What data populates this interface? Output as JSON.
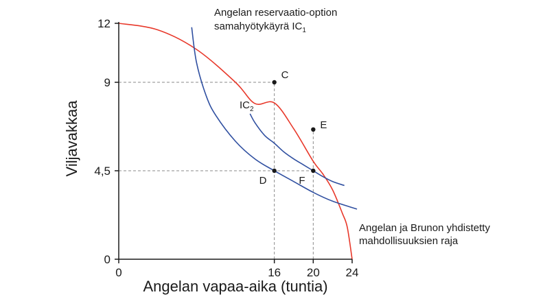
{
  "chart_data": {
    "type": "line",
    "title": "",
    "xlabel": "Angelan vapaa-aika (tuntia)",
    "ylabel": "Viljavakkaa",
    "xlim": [
      0,
      24
    ],
    "ylim": [
      0,
      12
    ],
    "xticks": [
      {
        "value": 0,
        "label": "0"
      },
      {
        "value": 16,
        "label": "16"
      },
      {
        "value": 20,
        "label": "20"
      },
      {
        "value": 24,
        "label": "24"
      }
    ],
    "yticks": [
      {
        "value": 0,
        "label": "0"
      },
      {
        "value": 4.5,
        "label": "4,5"
      },
      {
        "value": 9,
        "label": "9"
      },
      {
        "value": 12,
        "label": "12"
      }
    ],
    "grid": false,
    "series": [
      {
        "name": "Angelan ja Brunon yhdistetty mahdollisuuksien raja",
        "color": "#e8382a",
        "x": [
          0,
          4,
          8,
          12,
          14,
          16,
          18,
          20,
          21,
          22,
          23,
          23.5,
          24
        ],
        "y": [
          12,
          11.67,
          10.67,
          9,
          7.92,
          7.95,
          6.63,
          4.98,
          4.33,
          3.52,
          2.33,
          1.63,
          0
        ]
      },
      {
        "name": "IC1",
        "color": "#2f4fa0",
        "x": [
          7.5,
          8,
          9,
          10,
          12,
          14,
          16,
          18,
          20,
          22,
          24.5
        ],
        "y": [
          11.8,
          10.0,
          8.3,
          7.3,
          6.0,
          5.1,
          4.5,
          3.95,
          3.4,
          2.95,
          2.55
        ]
      },
      {
        "name": "IC2",
        "color": "#2f4fa0",
        "x": [
          13.5,
          14,
          15,
          16,
          17,
          18,
          19,
          20,
          21,
          22,
          23.2
        ],
        "y": [
          7.4,
          6.95,
          6.3,
          5.9,
          5.45,
          5.1,
          4.8,
          4.5,
          4.2,
          3.95,
          3.75
        ]
      }
    ],
    "points": [
      {
        "label": "C",
        "x": 16,
        "y": 9
      },
      {
        "label": "E",
        "x": 20,
        "y": 6.6
      },
      {
        "label": "D",
        "x": 16,
        "y": 4.5
      },
      {
        "label": "F",
        "x": 20,
        "y": 4.5
      }
    ],
    "reference_lines": [
      {
        "from": [
          0,
          9
        ],
        "to": [
          16,
          9
        ]
      },
      {
        "from": [
          0,
          4.5
        ],
        "to": [
          20,
          4.5
        ]
      },
      {
        "from": [
          16,
          0
        ],
        "to": [
          16,
          9
        ]
      },
      {
        "from": [
          20,
          0
        ],
        "to": [
          20,
          6.6
        ]
      }
    ],
    "annotations": {
      "ic1_line1": "Angelan reservaatio-option",
      "ic1_line2_prefix": "samahyötykäyrä IC",
      "ic1_line2_sub": "1",
      "ic2_prefix": "IC",
      "ic2_sub": "2",
      "frontier_line1": "Angelan ja Brunon yhdistetty",
      "frontier_line2": "mahdollisuuksien raja"
    },
    "colors": {
      "frontier": "#e8382a",
      "indifference": "#2f4fa0",
      "axis": "#1a1a1a",
      "reference": "#8a8a8a"
    }
  }
}
